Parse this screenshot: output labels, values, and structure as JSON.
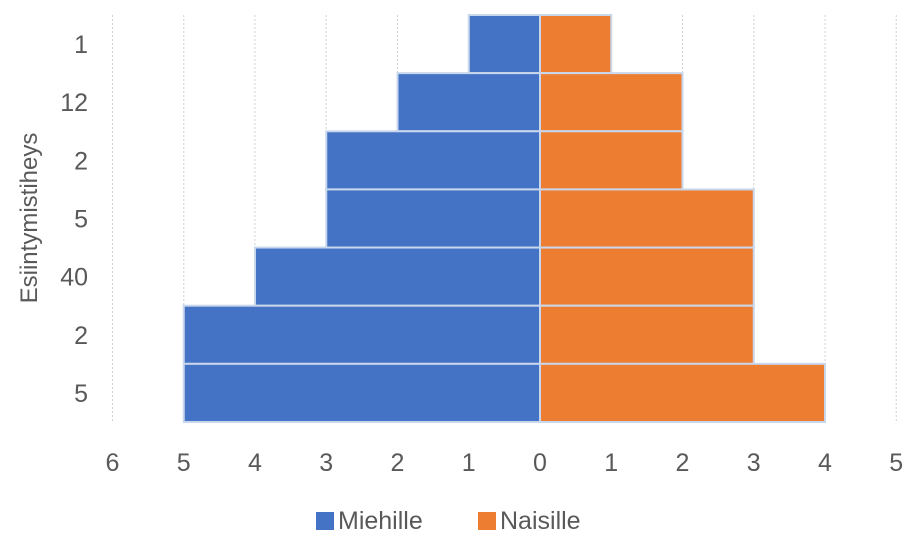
{
  "chart_data": {
    "type": "bar",
    "orientation": "horizontal",
    "layout": "population-pyramid",
    "ylabel": "Esiintymistiheys",
    "categories": [
      "1",
      "12",
      "2",
      "5",
      "40",
      "2",
      "5"
    ],
    "series": [
      {
        "name": "Miehille",
        "values": [
          1,
          2,
          3,
          3,
          4,
          5,
          5
        ],
        "color": "#4472c4",
        "side": "left"
      },
      {
        "name": "Naisille",
        "values": [
          1,
          2,
          2,
          3,
          3,
          3,
          4
        ],
        "color": "#ed7d31",
        "side": "right"
      }
    ],
    "x_ticks": [
      {
        "value": -6,
        "label": "6"
      },
      {
        "value": -5,
        "label": "5"
      },
      {
        "value": -4,
        "label": "4"
      },
      {
        "value": -3,
        "label": "3"
      },
      {
        "value": -2,
        "label": "2"
      },
      {
        "value": -1,
        "label": "1"
      },
      {
        "value": 0,
        "label": "0"
      },
      {
        "value": 1,
        "label": "1"
      },
      {
        "value": 2,
        "label": "2"
      },
      {
        "value": 3,
        "label": "3"
      },
      {
        "value": 4,
        "label": "4"
      },
      {
        "value": 5,
        "label": "5"
      }
    ],
    "xlim": [
      -6,
      5
    ],
    "grid": true,
    "legend_position": "bottom"
  }
}
